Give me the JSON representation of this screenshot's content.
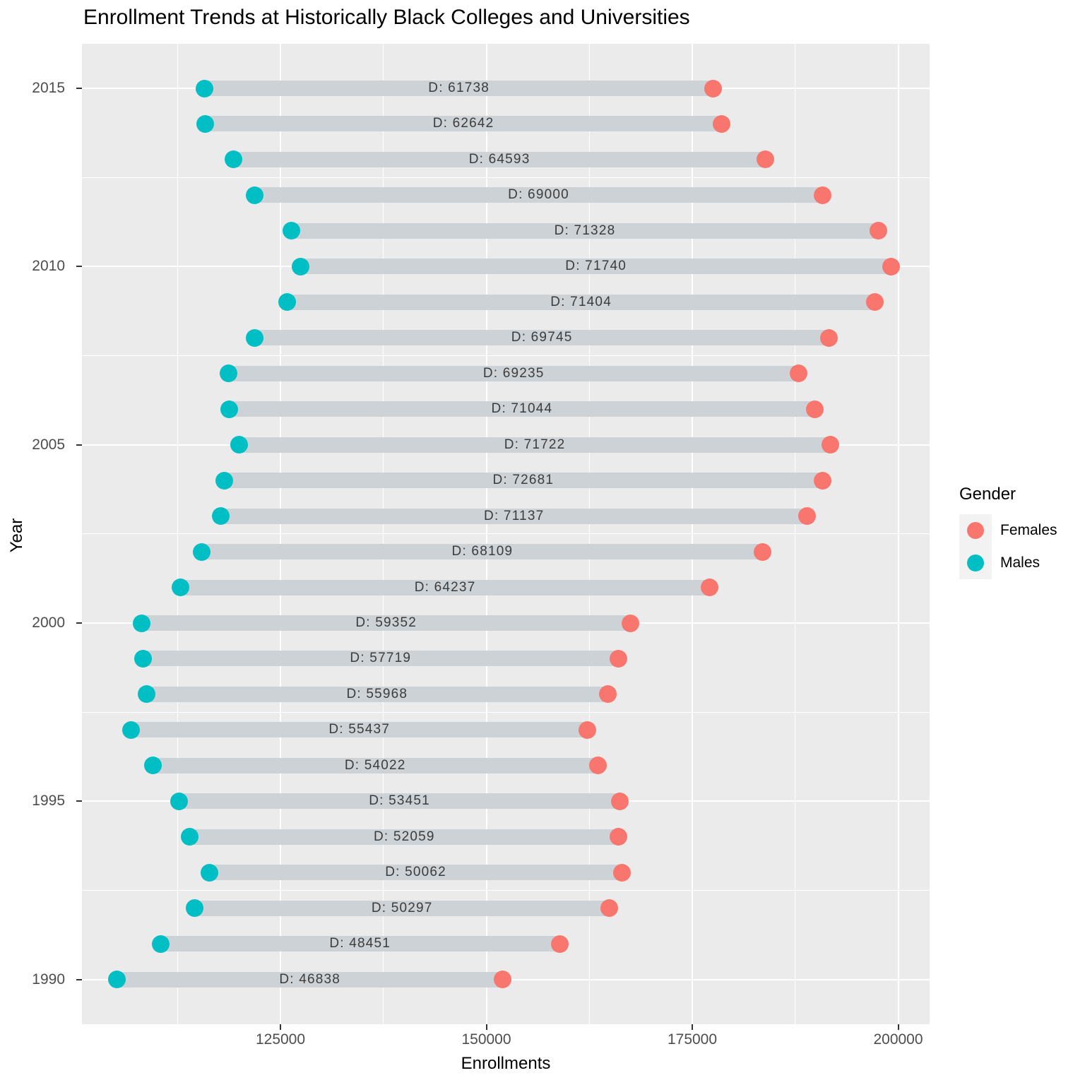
{
  "title": "Enrollment Trends at Historically Black Colleges and Universities",
  "x_axis": {
    "label": "Enrollments",
    "ticks": [
      125000,
      150000,
      175000,
      200000
    ],
    "tick_labels": [
      "125000",
      "150000",
      "175000",
      "200000"
    ],
    "minor_ticks": [
      112500,
      137500,
      162500,
      187500
    ]
  },
  "y_axis": {
    "label": "Year",
    "ticks": [
      2015,
      2010,
      2005,
      2000,
      1995,
      1990
    ],
    "tick_labels": [
      "2015",
      "2010",
      "2005",
      "2000",
      "1995",
      "1990"
    ],
    "minor_ticks": [
      2012.5,
      2007.5,
      2002.5,
      1997.5,
      1992.5
    ]
  },
  "legend": {
    "title": "Gender",
    "items": [
      {
        "label": "Females",
        "color": "#F8766D"
      },
      {
        "label": "Males",
        "color": "#00BFC4"
      }
    ]
  },
  "colors": {
    "panel_background": "#EBEBEB",
    "gridline": "#FFFFFF",
    "bar": "#CDD2D6",
    "females": "#F8766D",
    "males": "#00BFC4",
    "diff_label_text": "#3C3C3C",
    "tick_label_text": "#4D4D4D"
  },
  "chart_data": {
    "type": "scatter",
    "subtype": "dumbbell",
    "title": "Enrollment Trends at Historically Black Colleges and Universities",
    "xlabel": "Enrollments",
    "ylabel": "Year",
    "xlim": [
      100900,
      203800
    ],
    "ylim": [
      1988.75,
      2016.25
    ],
    "grid": "on",
    "legend_position": "right",
    "years": [
      2015,
      2014,
      2013,
      2012,
      2011,
      2010,
      2009,
      2008,
      2007,
      2006,
      2005,
      2004,
      2003,
      2002,
      2001,
      2000,
      1999,
      1998,
      1997,
      1996,
      1995,
      1994,
      1993,
      1992,
      1991,
      1990
    ],
    "series": [
      {
        "name": "Males",
        "values": [
          115800,
          115900,
          119300,
          121850,
          126300,
          127437,
          125800,
          121873,
          118700,
          118800,
          120023,
          118146,
          117795,
          115466,
          112874,
          108164,
          108301,
          108752,
          106865,
          109498,
          112734,
          114006,
          116397,
          114622,
          110442,
          105157
        ]
      },
      {
        "name": "Females",
        "values": [
          177538,
          178542,
          183893,
          190850,
          197628,
          199177,
          197204,
          191618,
          187935,
          189844,
          191745,
          190827,
          188932,
          183575,
          177111,
          167516,
          166020,
          164720,
          162302,
          163520,
          166185,
          166065,
          166459,
          164919,
          158893,
          151995
        ]
      }
    ],
    "diffs": [
      61738,
      62642,
      64593,
      69000,
      71328,
      71740,
      71404,
      69745,
      69235,
      71044,
      71722,
      72681,
      71137,
      68109,
      64237,
      59352,
      57719,
      55968,
      55437,
      54022,
      53451,
      52059,
      50062,
      50297,
      48451,
      46838
    ],
    "diff_labels": [
      "D: 61738",
      "D: 62642",
      "D: 64593",
      "D: 69000",
      "D: 71328",
      "D: 71740",
      "D: 71404",
      "D: 69745",
      "D: 69235",
      "D: 71044",
      "D: 71722",
      "D: 72681",
      "D: 71137",
      "D: 68109",
      "D: 64237",
      "D: 59352",
      "D: 57719",
      "D: 55968",
      "D: 55437",
      "D: 54022",
      "D: 53451",
      "D: 52059",
      "D: 50062",
      "D: 50297",
      "D: 48451",
      "D: 46838"
    ]
  }
}
